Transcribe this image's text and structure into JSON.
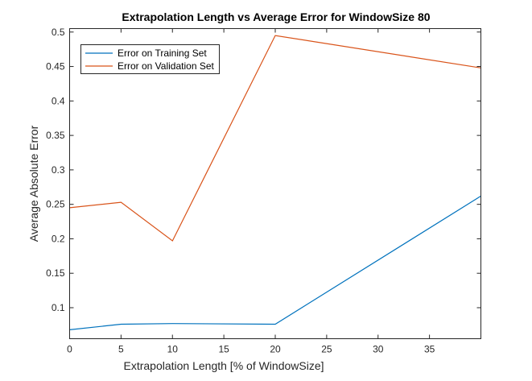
{
  "chart_data": {
    "type": "line",
    "title": "Extrapolation Length vs Average Error for WindowSize 80",
    "xlabel": "Extrapolation Length [% of WindowSize]",
    "ylabel": "Average Absolute Error",
    "xlim": [
      0,
      40
    ],
    "ylim": [
      0.055,
      0.505
    ],
    "xticks": [
      0,
      5,
      10,
      15,
      20,
      25,
      30,
      35
    ],
    "xtick_labels": [
      "0",
      "5",
      "10",
      "15",
      "20",
      "25",
      "30",
      "35"
    ],
    "yticks": [
      0.1,
      0.15,
      0.2,
      0.25,
      0.3,
      0.35,
      0.4,
      0.45,
      0.5
    ],
    "ytick_labels": [
      "0.1",
      "0.15",
      "0.2",
      "0.25",
      "0.3",
      "0.35",
      "0.4",
      "0.45",
      "0.5"
    ],
    "x": [
      0,
      5,
      10,
      20,
      40
    ],
    "grid": false,
    "legend_position": "top-left",
    "series": [
      {
        "name": "Error on Training Set",
        "color": "#0072BD",
        "values": [
          0.068,
          0.076,
          0.077,
          0.076,
          0.262
        ]
      },
      {
        "name": "Error on Validation Set",
        "color": "#D95319",
        "values": [
          0.245,
          0.253,
          0.197,
          0.495,
          0.448
        ]
      }
    ]
  }
}
